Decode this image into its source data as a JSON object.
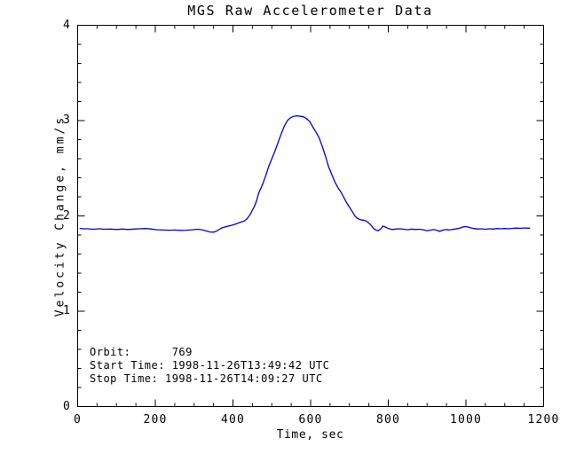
{
  "title": "MGS Raw Accelerometer Data",
  "annotations": {
    "orbit": "Orbit:      769",
    "start": "Start Time: 1998-11-26T13:49:42 UTC",
    "stop": "Stop Time: 1998-11-26T14:09:27 UTC"
  },
  "colors": {
    "line": "#0000cd",
    "axis": "#000000",
    "background": "#ffffff"
  },
  "chart_data": {
    "type": "line",
    "title": "MGS Raw Accelerometer Data",
    "xlabel": "Time, sec",
    "ylabel": "Velocity Change, mm/s",
    "xlim": [
      0,
      1200
    ],
    "ylim": [
      0,
      4
    ],
    "xticks": [
      0,
      200,
      400,
      600,
      800,
      1000,
      1200
    ],
    "yticks": [
      0,
      1,
      2,
      3,
      4
    ],
    "x_minor_interval": 50,
    "y_minor_interval": 0.2,
    "grid": false,
    "legend": "none",
    "series": [
      {
        "name": "velocity-change",
        "color": "#0000cd",
        "points": [
          [
            5,
            1.87
          ],
          [
            15,
            1.865
          ],
          [
            25,
            1.865
          ],
          [
            40,
            1.86
          ],
          [
            55,
            1.865
          ],
          [
            70,
            1.86
          ],
          [
            85,
            1.862
          ],
          [
            100,
            1.858
          ],
          [
            115,
            1.862
          ],
          [
            130,
            1.858
          ],
          [
            145,
            1.862
          ],
          [
            160,
            1.865
          ],
          [
            175,
            1.868
          ],
          [
            190,
            1.862
          ],
          [
            205,
            1.855
          ],
          [
            220,
            1.852
          ],
          [
            235,
            1.85
          ],
          [
            250,
            1.852
          ],
          [
            265,
            1.848
          ],
          [
            280,
            1.85
          ],
          [
            295,
            1.855
          ],
          [
            310,
            1.86
          ],
          [
            320,
            1.855
          ],
          [
            330,
            1.845
          ],
          [
            340,
            1.832
          ],
          [
            350,
            1.83
          ],
          [
            358,
            1.84
          ],
          [
            365,
            1.86
          ],
          [
            372,
            1.875
          ],
          [
            380,
            1.885
          ],
          [
            390,
            1.895
          ],
          [
            400,
            1.905
          ],
          [
            410,
            1.92
          ],
          [
            420,
            1.935
          ],
          [
            428,
            1.945
          ],
          [
            435,
            1.965
          ],
          [
            440,
            1.99
          ],
          [
            445,
            2.02
          ],
          [
            450,
            2.06
          ],
          [
            455,
            2.1
          ],
          [
            460,
            2.15
          ],
          [
            465,
            2.22
          ],
          [
            468,
            2.26
          ],
          [
            472,
            2.29
          ],
          [
            478,
            2.35
          ],
          [
            485,
            2.43
          ],
          [
            492,
            2.52
          ],
          [
            500,
            2.6
          ],
          [
            508,
            2.68
          ],
          [
            516,
            2.77
          ],
          [
            524,
            2.86
          ],
          [
            532,
            2.94
          ],
          [
            540,
            3.0
          ],
          [
            548,
            3.03
          ],
          [
            556,
            3.045
          ],
          [
            565,
            3.05
          ],
          [
            574,
            3.045
          ],
          [
            582,
            3.04
          ],
          [
            590,
            3.02
          ],
          [
            598,
            2.99
          ],
          [
            606,
            2.93
          ],
          [
            614,
            2.88
          ],
          [
            622,
            2.82
          ],
          [
            630,
            2.73
          ],
          [
            638,
            2.63
          ],
          [
            646,
            2.52
          ],
          [
            654,
            2.44
          ],
          [
            662,
            2.36
          ],
          [
            670,
            2.3
          ],
          [
            678,
            2.25
          ],
          [
            686,
            2.19
          ],
          [
            694,
            2.13
          ],
          [
            702,
            2.08
          ],
          [
            708,
            2.04
          ],
          [
            714,
            2.0
          ],
          [
            720,
            1.975
          ],
          [
            728,
            1.96
          ],
          [
            736,
            1.955
          ],
          [
            744,
            1.945
          ],
          [
            750,
            1.925
          ],
          [
            756,
            1.9
          ],
          [
            762,
            1.87
          ],
          [
            768,
            1.852
          ],
          [
            774,
            1.845
          ],
          [
            780,
            1.862
          ],
          [
            786,
            1.893
          ],
          [
            792,
            1.885
          ],
          [
            800,
            1.868
          ],
          [
            810,
            1.858
          ],
          [
            820,
            1.862
          ],
          [
            830,
            1.865
          ],
          [
            840,
            1.86
          ],
          [
            850,
            1.855
          ],
          [
            860,
            1.862
          ],
          [
            870,
            1.858
          ],
          [
            880,
            1.86
          ],
          [
            890,
            1.855
          ],
          [
            900,
            1.845
          ],
          [
            908,
            1.85
          ],
          [
            916,
            1.858
          ],
          [
            924,
            1.85
          ],
          [
            932,
            1.838
          ],
          [
            940,
            1.85
          ],
          [
            948,
            1.858
          ],
          [
            956,
            1.852
          ],
          [
            964,
            1.858
          ],
          [
            972,
            1.862
          ],
          [
            980,
            1.868
          ],
          [
            988,
            1.878
          ],
          [
            996,
            1.888
          ],
          [
            1004,
            1.885
          ],
          [
            1012,
            1.875
          ],
          [
            1020,
            1.868
          ],
          [
            1030,
            1.862
          ],
          [
            1040,
            1.865
          ],
          [
            1050,
            1.86
          ],
          [
            1060,
            1.865
          ],
          [
            1070,
            1.862
          ],
          [
            1080,
            1.868
          ],
          [
            1090,
            1.865
          ],
          [
            1100,
            1.868
          ],
          [
            1110,
            1.865
          ],
          [
            1120,
            1.87
          ],
          [
            1130,
            1.873
          ],
          [
            1140,
            1.87
          ],
          [
            1150,
            1.874
          ],
          [
            1160,
            1.872
          ],
          [
            1165,
            1.872
          ]
        ]
      }
    ]
  }
}
